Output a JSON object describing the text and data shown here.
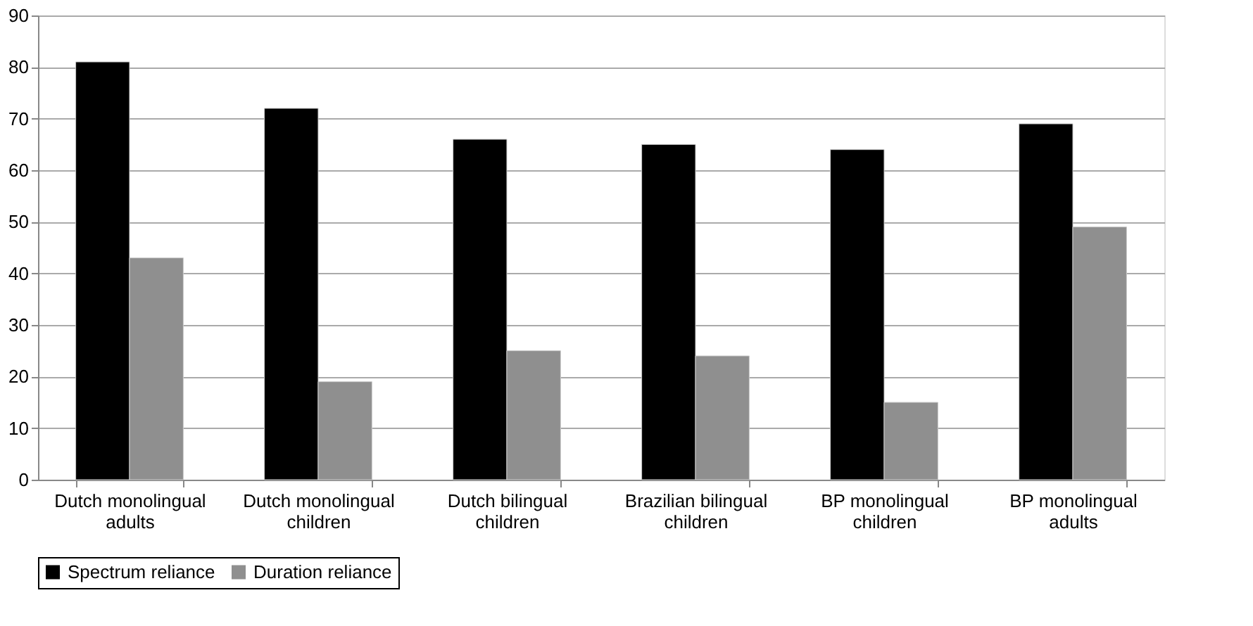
{
  "chart_data": {
    "type": "bar",
    "categories": [
      "Dutch monolingual adults",
      "Dutch monolingual children",
      "Dutch bilingual children",
      "Brazilian bilingual children",
      "BP monolingual children",
      "BP monolingual adults"
    ],
    "series": [
      {
        "name": "Spectrum reliance",
        "color": "#000000",
        "values": [
          81,
          72,
          66,
          65,
          64,
          69
        ]
      },
      {
        "name": "Duration reliance",
        "color": "#8f8f8f",
        "values": [
          43,
          19,
          25,
          24,
          15,
          49
        ]
      }
    ],
    "ylim": [
      0,
      90
    ],
    "yticks": [
      0,
      10,
      20,
      30,
      40,
      50,
      60,
      70,
      80,
      90
    ],
    "grid": "y",
    "legend": "bottom"
  }
}
